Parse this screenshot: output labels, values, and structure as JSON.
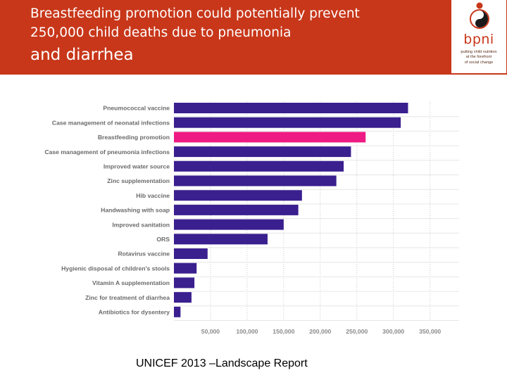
{
  "header": {
    "title_line1": "Breastfeeding promotion could potentially prevent",
    "title_line2": "250,000 child deaths due to pneumonia",
    "title_line3": "and diarrhea",
    "background_color": "#c8371a"
  },
  "logo": {
    "wordmark": "bpni",
    "tagline_line1": "putting child nutrition",
    "tagline_line2": "at the forefront",
    "tagline_line3": "of social change"
  },
  "source": "UNICEF 2013 –Landscape Report",
  "colors": {
    "bar": "#3a1f8f",
    "highlight": "#ee1b84"
  },
  "chart_data": {
    "type": "bar",
    "orientation": "horizontal",
    "categories": [
      "Pneumococcal vaccine",
      "Case management of neonatal infections",
      "Breastfeeding promotion",
      "Case management of pneumonia infections",
      "Improved water source",
      "Zinc supplementation",
      "Hib vaccine",
      "Handwashing with soap",
      "Improved sanitation",
      "ORS",
      "Rotavirus vaccine",
      "Hygienic disposal of children's stools",
      "Vitamin A supplementation",
      "Zinc for treatment of diarrhea",
      "Antibiotics for dysentery"
    ],
    "values": [
      320000,
      310000,
      262000,
      242000,
      232000,
      222000,
      175000,
      170000,
      150000,
      128000,
      46000,
      31000,
      28000,
      24000,
      9000
    ],
    "highlight_index": 2,
    "xlim": [
      0,
      385000
    ],
    "xticks": [
      50000,
      100000,
      150000,
      200000,
      250000,
      300000,
      350000
    ],
    "xtick_labels": [
      "50,000",
      "100,000",
      "150,000",
      "200,000",
      "250,000",
      "300,000",
      "350,000"
    ],
    "title": "",
    "xlabel": "",
    "ylabel": ""
  }
}
